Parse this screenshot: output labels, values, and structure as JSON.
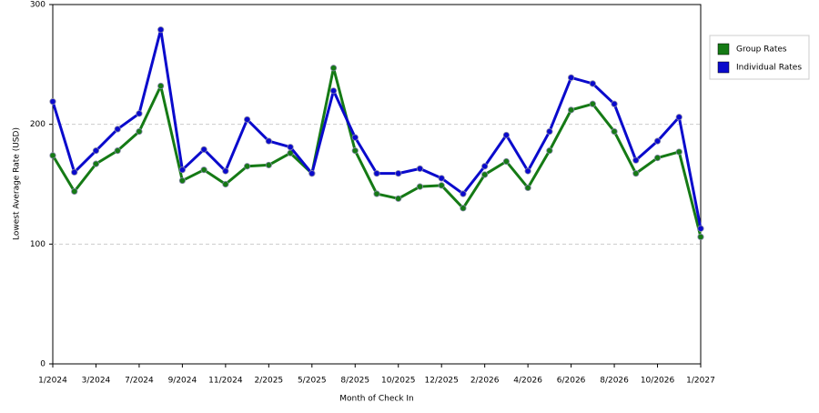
{
  "chart_data": {
    "type": "line",
    "xlabel": "Month of Check In",
    "ylabel": "Lowest Average Rate (USD)",
    "categories": [
      "1/2024",
      null,
      "3/2024",
      null,
      "7/2024",
      null,
      "9/2024",
      null,
      "11/2024",
      null,
      "2/2025",
      null,
      "5/2025",
      null,
      "8/2025",
      null,
      "10/2025",
      null,
      "12/2025",
      null,
      "2/2026",
      null,
      "4/2026",
      null,
      "6/2026",
      null,
      "8/2026",
      null,
      "10/2026",
      null,
      "1/2027"
    ],
    "series": [
      {
        "name": "Group Rates",
        "color": "#157a15",
        "values": [
          174,
          144,
          167,
          178,
          194,
          232,
          153,
          162,
          150,
          165,
          166,
          176,
          159,
          247,
          178,
          142,
          138,
          148,
          149,
          130,
          158,
          169,
          147,
          178,
          212,
          217,
          194,
          159,
          172,
          177,
          106
        ]
      },
      {
        "name": "Individual Rates",
        "color": "#0a0acc",
        "values": [
          219,
          160,
          178,
          196,
          209,
          279,
          162,
          179,
          161,
          204,
          186,
          181,
          159,
          228,
          189,
          159,
          159,
          163,
          155,
          142,
          165,
          191,
          161,
          194,
          239,
          234,
          217,
          170,
          186,
          206,
          113
        ]
      }
    ],
    "ylim": [
      0,
      300
    ],
    "yticks": [
      0,
      100,
      200,
      300
    ],
    "grid": true,
    "legend": "right"
  }
}
